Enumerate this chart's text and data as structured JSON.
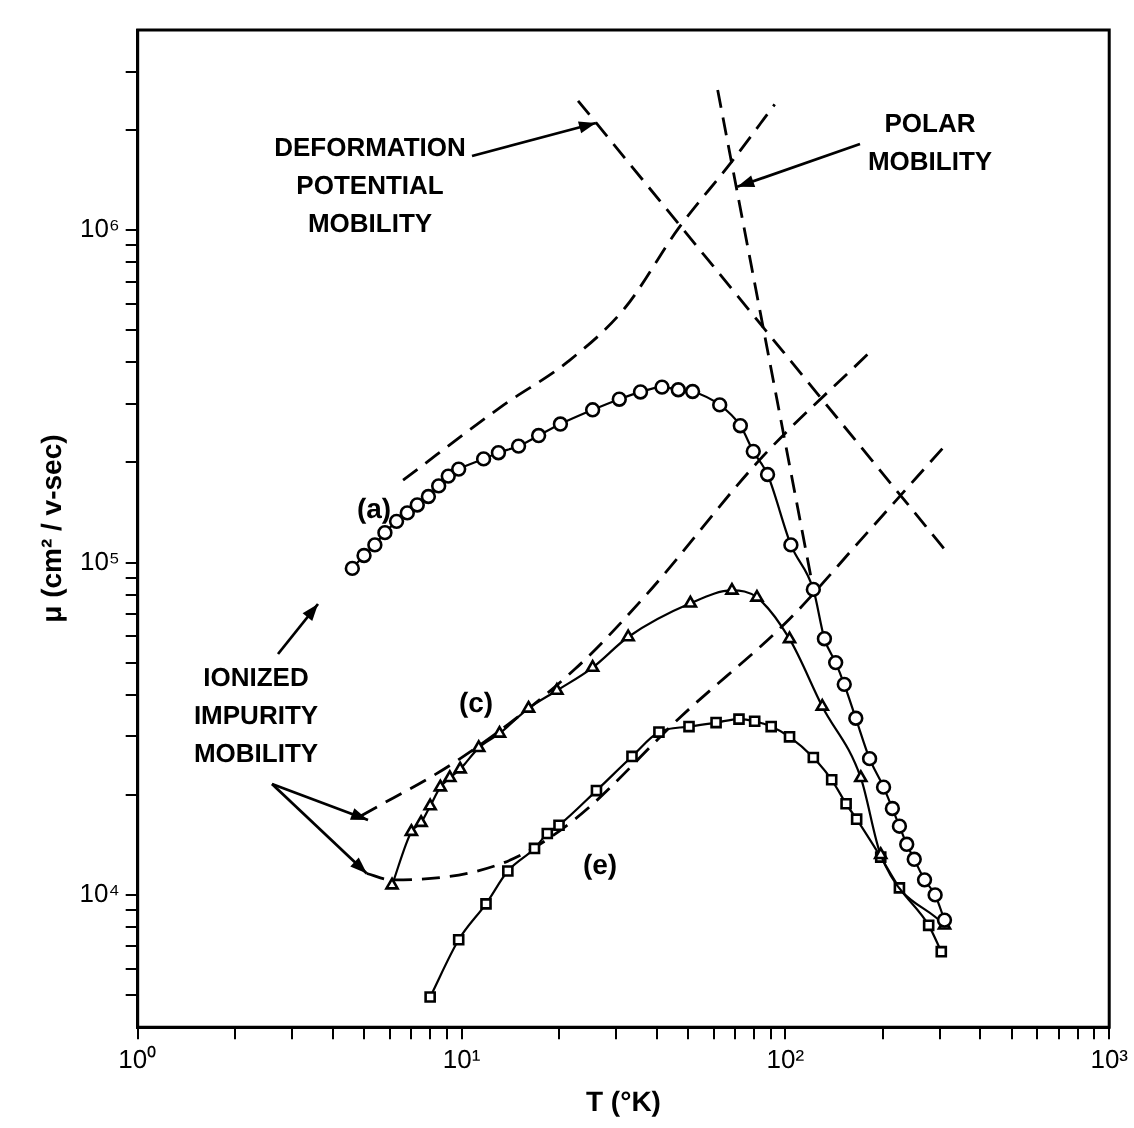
{
  "chart_data": {
    "type": "line",
    "xlabel": "T (°K)",
    "ylabel": "μ (cm² / v-sec)",
    "log": "xy",
    "grid": false,
    "legend": false,
    "xlim": [
      1,
      1000
    ],
    "ylim": [
      4000,
      4000000
    ],
    "xticks": [
      {
        "value": 1,
        "label": "10⁰"
      },
      {
        "value": 2,
        "label": null
      },
      {
        "value": 3,
        "label": null
      },
      {
        "value": 4,
        "label": null
      },
      {
        "value": 5,
        "label": null
      },
      {
        "value": 6,
        "label": null
      },
      {
        "value": 7,
        "label": null
      },
      {
        "value": 8,
        "label": null
      },
      {
        "value": 9,
        "label": null
      },
      {
        "value": 10,
        "label": "10¹"
      },
      {
        "value": 20,
        "label": null
      },
      {
        "value": 30,
        "label": null
      },
      {
        "value": 40,
        "label": null
      },
      {
        "value": 50,
        "label": null
      },
      {
        "value": 60,
        "label": null
      },
      {
        "value": 70,
        "label": null
      },
      {
        "value": 80,
        "label": null
      },
      {
        "value": 90,
        "label": null
      },
      {
        "value": 100,
        "label": "10²"
      },
      {
        "value": 200,
        "label": null
      },
      {
        "value": 300,
        "label": null
      },
      {
        "value": 400,
        "label": null
      },
      {
        "value": 500,
        "label": null
      },
      {
        "value": 600,
        "label": null
      },
      {
        "value": 700,
        "label": null
      },
      {
        "value": 800,
        "label": null
      },
      {
        "value": 900,
        "label": null
      },
      {
        "value": 1000,
        "label": "10³"
      }
    ],
    "yticks": [
      {
        "value": 5000,
        "label": null
      },
      {
        "value": 6000,
        "label": null
      },
      {
        "value": 7000,
        "label": null
      },
      {
        "value": 8000,
        "label": null
      },
      {
        "value": 9000,
        "label": null
      },
      {
        "value": 10000,
        "label": "10⁴"
      },
      {
        "value": 20000,
        "label": null
      },
      {
        "value": 30000,
        "label": null
      },
      {
        "value": 40000,
        "label": null
      },
      {
        "value": 50000,
        "label": null
      },
      {
        "value": 60000,
        "label": null
      },
      {
        "value": 70000,
        "label": null
      },
      {
        "value": 80000,
        "label": null
      },
      {
        "value": 90000,
        "label": null
      },
      {
        "value": 100000,
        "label": "10⁵"
      },
      {
        "value": 200000,
        "label": null
      },
      {
        "value": 300000,
        "label": null
      },
      {
        "value": 400000,
        "label": null
      },
      {
        "value": 500000,
        "label": null
      },
      {
        "value": 600000,
        "label": null
      },
      {
        "value": 700000,
        "label": null
      },
      {
        "value": 800000,
        "label": null
      },
      {
        "value": 900000,
        "label": null
      },
      {
        "value": 1000000,
        "label": "10⁶"
      },
      {
        "value": 2000000,
        "label": null
      },
      {
        "value": 3000000,
        "label": null
      }
    ],
    "annotations": [
      {
        "text": "DEFORMATION POTENTIAL MOBILITY",
        "x": 26,
        "y": 2100000
      },
      {
        "text": "POLAR MOBILITY",
        "x": 71,
        "y": 1350000
      },
      {
        "text": "IONIZED IMPURITY MOBILITY",
        "x": 5.1,
        "y": 11600
      }
    ],
    "series": [
      {
        "name": "(a)",
        "type": "line",
        "color": "#000000",
        "marker": "circle",
        "line_style": "solid",
        "x": [
          4.6,
          5.0,
          5.4,
          5.8,
          6.3,
          6.8,
          7.3,
          7.9,
          8.5,
          9.1,
          9.8,
          11.7,
          13,
          15,
          17.3,
          20.2,
          25.4,
          30.7,
          35.7,
          41.6,
          46.7,
          51.7,
          62.7,
          72.6,
          79.6,
          88.1,
          104,
          122,
          132,
          143,
          152,
          165,
          182,
          201,
          214,
          225,
          237,
          250,
          269,
          290,
          310
        ],
        "values": [
          96000,
          105000,
          113000,
          123000,
          133000,
          141000,
          149000,
          158000,
          170000,
          182000,
          191000,
          205000,
          214000,
          224000,
          241000,
          261000,
          288000,
          310000,
          326000,
          337000,
          331000,
          327000,
          298000,
          258000,
          216000,
          184000,
          113000,
          83000,
          59000,
          50000,
          43000,
          34000,
          25700,
          21100,
          18200,
          16100,
          14200,
          12800,
          11100,
          10000,
          8400
        ]
      },
      {
        "name": "(c)",
        "type": "line",
        "color": "#000000",
        "marker": "triangle",
        "line_style": "solid",
        "x": [
          6.1,
          7.0,
          7.5,
          8.0,
          8.6,
          9.2,
          9.9,
          11.3,
          13.1,
          16.1,
          19.7,
          25.4,
          32.7,
          50.9,
          68.4,
          81.7,
          103,
          130,
          171,
          197,
          310
        ],
        "values": [
          10700,
          15500,
          16500,
          18500,
          21100,
          22500,
          23900,
          27700,
          30600,
          36400,
          41200,
          48300,
          59700,
          75400,
          82400,
          78500,
          58900,
          36900,
          22500,
          13200,
          8100
        ]
      },
      {
        "name": "(e)",
        "type": "line",
        "color": "#000000",
        "marker": "square",
        "line_style": "solid",
        "x": [
          8.0,
          9.8,
          11.9,
          13.9,
          16.8,
          18.4,
          20,
          26.1,
          33.6,
          40.7,
          50.4,
          61.1,
          71.9,
          80.4,
          90.4,
          103,
          122,
          139,
          154,
          166,
          197,
          225,
          277,
          303
        ],
        "values": [
          4930,
          7330,
          9400,
          11800,
          13800,
          15300,
          16200,
          20600,
          26100,
          30900,
          32100,
          33000,
          33800,
          33300,
          32100,
          29900,
          25900,
          22200,
          18800,
          16900,
          13000,
          10500,
          8100,
          6750
        ]
      },
      {
        "type": "line",
        "color": "#000000",
        "marker": "none",
        "line_style": "dashed",
        "x": [
          22.9,
          314
        ],
        "values": [
          2450000,
          108000
        ]
      },
      {
        "type": "line",
        "color": "#000000",
        "marker": "none",
        "line_style": "dashed",
        "x": [
          61.8,
          122
        ],
        "values": [
          2640000,
          83000
        ]
      },
      {
        "type": "line",
        "color": "#000000",
        "marker": "none",
        "line_style": "dashed",
        "x": [
          6.6,
          13.5,
          21.3,
          31.9,
          46.7,
          68.4,
          92.7
        ],
        "values": [
          177000,
          298000,
          402000,
          582000,
          1010000,
          1610000,
          2390000
        ]
      },
      {
        "type": "line",
        "color": "#000000",
        "marker": "none",
        "line_style": "dashed",
        "x": [
          4.9,
          9.9,
          22.4,
          37.2,
          83.8,
          184
        ],
        "values": [
          17300,
          25700,
          47800,
          80000,
          205000,
          433000
        ]
      },
      {
        "type": "line",
        "color": "#000000",
        "marker": "none",
        "line_style": "dashed",
        "x": [
          5.1,
          6.1,
          13.5,
          22.4,
          47.9,
          103,
          171,
          314
        ],
        "values": [
          11600,
          11100,
          12500,
          16900,
          34600,
          67600,
          117000,
          227000
        ]
      }
    ]
  }
}
